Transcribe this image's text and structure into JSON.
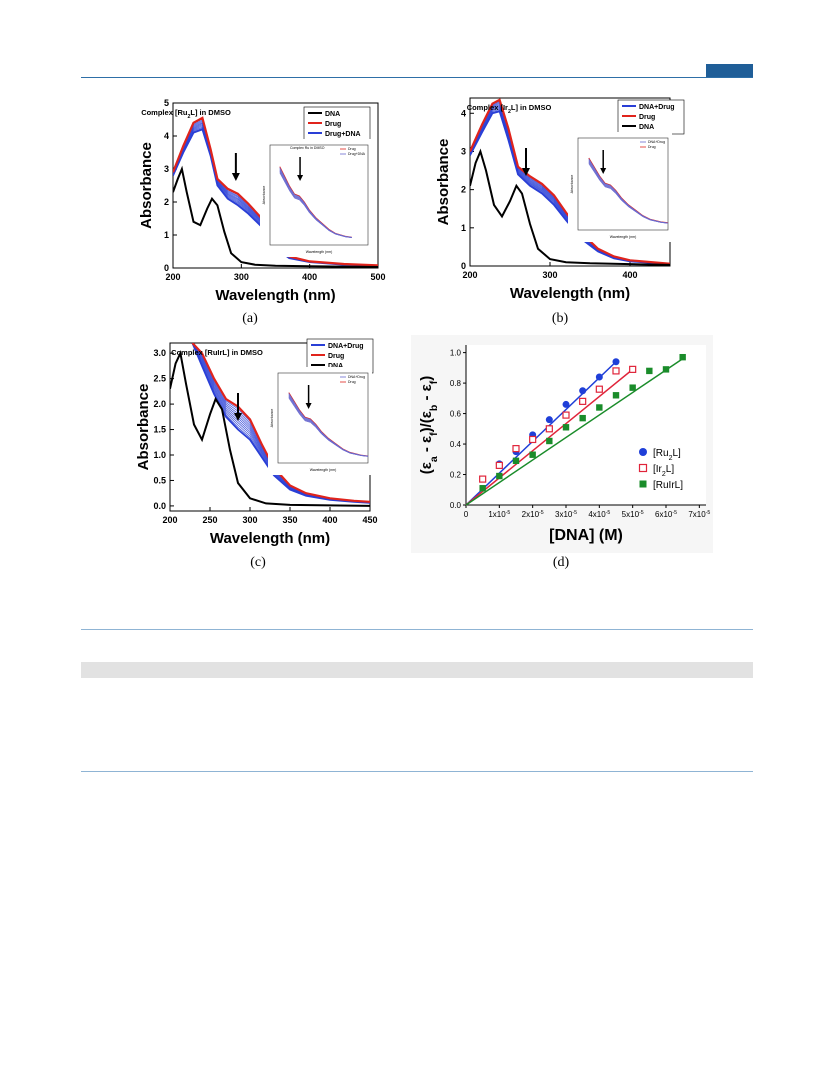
{
  "header": {
    "accent_color": "#1f5e98"
  },
  "figure": {
    "captions": [
      "(a)",
      "(b)",
      "(c)",
      "(d)"
    ]
  },
  "chart_data": [
    {
      "type": "line",
      "panel": "a",
      "annotation": "Complex [Ru2L] in DMSO",
      "xlabel": "Wavelength (nm)",
      "ylabel": "Absorbance",
      "xlim": [
        200,
        500
      ],
      "ylim": [
        0,
        5
      ],
      "xticks": [
        "200",
        "300",
        "400",
        "500"
      ],
      "yticks": [
        "0",
        "1",
        "2",
        "3",
        "4",
        "5"
      ],
      "legend": [
        "DNA",
        "Drug",
        "Drug+DNA"
      ],
      "colors": {
        "DNA": "#000000",
        "Drug": "#e0241c",
        "Drug+DNA": "#2a3fd6"
      },
      "series": [
        {
          "name": "DNA",
          "x": [
            200,
            207,
            213,
            220,
            230,
            240,
            250,
            257,
            265,
            275,
            285,
            300,
            320,
            350,
            400,
            500
          ],
          "values": [
            2.3,
            2.7,
            3.0,
            2.3,
            1.4,
            1.3,
            1.8,
            2.1,
            1.9,
            1.1,
            0.45,
            0.18,
            0.1,
            0.07,
            0.05,
            0.03
          ]
        },
        {
          "name": "Drug",
          "x": [
            200,
            215,
            230,
            243,
            255,
            265,
            280,
            295,
            310,
            330,
            350,
            370,
            400,
            450,
            500
          ],
          "values": [
            2.9,
            3.7,
            4.4,
            4.55,
            3.6,
            2.7,
            2.4,
            2.25,
            1.95,
            1.5,
            0.75,
            0.35,
            0.2,
            0.12,
            0.08
          ]
        },
        {
          "name": "Drug+DNA",
          "x": [
            200,
            215,
            230,
            243,
            255,
            265,
            280,
            295,
            310,
            330,
            350,
            370,
            400,
            450,
            500
          ],
          "values": [
            2.8,
            3.5,
            4.1,
            4.2,
            3.4,
            2.5,
            2.1,
            1.9,
            1.65,
            1.25,
            0.6,
            0.3,
            0.18,
            0.1,
            0.07
          ]
        }
      ],
      "inset": {
        "title": "Complex Ru in DMSO",
        "xlabel": "Wavelength (nm)",
        "ylabel": "Absorbance",
        "legend": [
          "Drug",
          "Drug+DNA"
        ]
      }
    },
    {
      "type": "line",
      "panel": "b",
      "annotation": "Complex [Ir2L] in DMSO",
      "xlabel": "Wavelength (nm)",
      "ylabel": "Absorbance",
      "xlim": [
        200,
        450
      ],
      "ylim": [
        0,
        4.4
      ],
      "xticks": [
        "200",
        "300",
        "400"
      ],
      "yticks": [
        "0",
        "1",
        "2",
        "3",
        "4"
      ],
      "legend": [
        "DNA+Drug",
        "Drug",
        "DNA"
      ],
      "colors": {
        "DNA+Drug": "#2a3fd6",
        "Drug": "#e0241c",
        "DNA": "#000000"
      },
      "series": [
        {
          "name": "DNA",
          "x": [
            200,
            207,
            213,
            220,
            230,
            240,
            250,
            258,
            265,
            275,
            285,
            300,
            320,
            350,
            400,
            450
          ],
          "values": [
            2.1,
            2.7,
            3.0,
            2.5,
            1.6,
            1.3,
            1.7,
            2.1,
            1.9,
            1.1,
            0.45,
            0.18,
            0.1,
            0.07,
            0.05,
            0.03
          ]
        },
        {
          "name": "Drug",
          "x": [
            200,
            215,
            228,
            237,
            248,
            260,
            275,
            290,
            305,
            320,
            340,
            360,
            380,
            400,
            450
          ],
          "values": [
            3.0,
            3.7,
            4.25,
            4.35,
            3.6,
            2.6,
            2.35,
            2.15,
            1.85,
            1.4,
            0.85,
            0.45,
            0.25,
            0.15,
            0.06
          ]
        },
        {
          "name": "DNA+Drug",
          "x": [
            200,
            215,
            228,
            237,
            248,
            260,
            275,
            290,
            305,
            320,
            340,
            360,
            380,
            400,
            450
          ],
          "values": [
            2.9,
            3.5,
            4.0,
            4.05,
            3.3,
            2.4,
            2.1,
            1.9,
            1.6,
            1.2,
            0.7,
            0.38,
            0.2,
            0.12,
            0.05
          ]
        }
      ],
      "inset": {
        "xlabel": "Wavelength (nm)",
        "ylabel": "Absorbance",
        "legend": [
          "DNA+Drug",
          "Drug"
        ]
      }
    },
    {
      "type": "line",
      "panel": "c",
      "annotation": "Complex [RuIrL] in DMSO",
      "xlabel": "Wavelength (nm)",
      "ylabel": "Absorbance",
      "xlim": [
        200,
        450
      ],
      "ylim": [
        -0.1,
        3.2
      ],
      "xticks": [
        "200",
        "250",
        "300",
        "350",
        "400",
        "450"
      ],
      "yticks": [
        "0.0",
        "0.5",
        "1.0",
        "1.5",
        "2.0",
        "2.5",
        "3.0"
      ],
      "legend": [
        "DNA+Drug",
        "Drug",
        "DNA"
      ],
      "colors": {
        "DNA+Drug": "#2a3fd6",
        "Drug": "#e0241c",
        "DNA": "#000000"
      },
      "series": [
        {
          "name": "DNA",
          "x": [
            200,
            207,
            213,
            220,
            230,
            240,
            250,
            257,
            265,
            275,
            285,
            300,
            320,
            350,
            400,
            450
          ],
          "values": [
            2.3,
            2.8,
            3.0,
            2.4,
            1.6,
            1.3,
            1.8,
            2.1,
            1.9,
            1.1,
            0.45,
            0.15,
            0.05,
            0.02,
            0.01,
            0.0
          ]
        },
        {
          "name": "Drug",
          "x": [
            228,
            240,
            255,
            270,
            285,
            300,
            315,
            330,
            350,
            370,
            400,
            430,
            450
          ],
          "values": [
            3.2,
            3.0,
            2.5,
            2.1,
            1.95,
            1.7,
            1.2,
            0.75,
            0.4,
            0.25,
            0.15,
            0.1,
            0.08
          ]
        },
        {
          "name": "DNA+Drug",
          "x": [
            228,
            240,
            255,
            270,
            285,
            300,
            315,
            330,
            350,
            370,
            400,
            430,
            450
          ],
          "values": [
            3.2,
            2.75,
            2.2,
            1.75,
            1.5,
            1.3,
            0.95,
            0.6,
            0.32,
            0.2,
            0.12,
            0.08,
            0.06
          ]
        }
      ],
      "inset": {
        "xlabel": "Wavelength (nm)",
        "ylabel": "Absorbance",
        "legend": [
          "DNA+Drug",
          "Drug"
        ]
      }
    },
    {
      "type": "scatter",
      "panel": "d",
      "xlabel": "[DNA] (M)",
      "ylabel": "(εa - εf)/(εb - εf)",
      "xlim": [
        0,
        7.2e-05
      ],
      "ylim": [
        0,
        1.05
      ],
      "xticks": [
        "0",
        "1x10-5",
        "2x10-5",
        "3x10-5",
        "4x10-5",
        "5x10-5",
        "6x10-5",
        "7x10-5"
      ],
      "yticks": [
        "0.0",
        "0.2",
        "0.4",
        "0.6",
        "0.8",
        "1.0"
      ],
      "legend": [
        "[Ru2L]",
        "[Ir2L]",
        "[RuIrL]"
      ],
      "colors": {
        "[Ru2L]": "#1f3fd8",
        "[Ir2L]": "#e0243a",
        "[RuIrL]": "#1a8c2a"
      },
      "series": [
        {
          "name": "[Ru2L]",
          "marker": "filled-circle",
          "x": [
            1e-05,
            1.5e-05,
            2e-05,
            2.5e-05,
            3e-05,
            3.5e-05,
            4e-05,
            4.5e-05
          ],
          "values": [
            0.27,
            0.35,
            0.46,
            0.56,
            0.66,
            0.75,
            0.84,
            0.94
          ]
        },
        {
          "name": "[Ir2L]",
          "marker": "open-square",
          "x": [
            5e-06,
            1e-05,
            1.5e-05,
            2e-05,
            2.5e-05,
            3e-05,
            3.5e-05,
            4e-05,
            4.5e-05,
            5e-05
          ],
          "values": [
            0.17,
            0.26,
            0.37,
            0.43,
            0.5,
            0.59,
            0.68,
            0.76,
            0.88,
            0.89
          ]
        },
        {
          "name": "[RuIrL]",
          "marker": "filled-square",
          "x": [
            5e-06,
            1e-05,
            1.5e-05,
            2e-05,
            2.5e-05,
            3e-05,
            3.5e-05,
            4e-05,
            4.5e-05,
            5e-05,
            5.5e-05,
            6e-05,
            6.5e-05
          ],
          "values": [
            0.11,
            0.19,
            0.29,
            0.33,
            0.42,
            0.51,
            0.57,
            0.64,
            0.72,
            0.77,
            0.88,
            0.89,
            0.97
          ]
        }
      ],
      "fits": [
        {
          "name": "[Ru2L]",
          "x": [
            0,
            4.5e-05
          ],
          "y": [
            0,
            0.94
          ]
        },
        {
          "name": "[Ir2L]",
          "x": [
            0,
            5e-05
          ],
          "y": [
            0,
            0.89
          ]
        },
        {
          "name": "[RuIrL]",
          "x": [
            0,
            6.5e-05
          ],
          "y": [
            0,
            0.96
          ]
        }
      ]
    }
  ]
}
